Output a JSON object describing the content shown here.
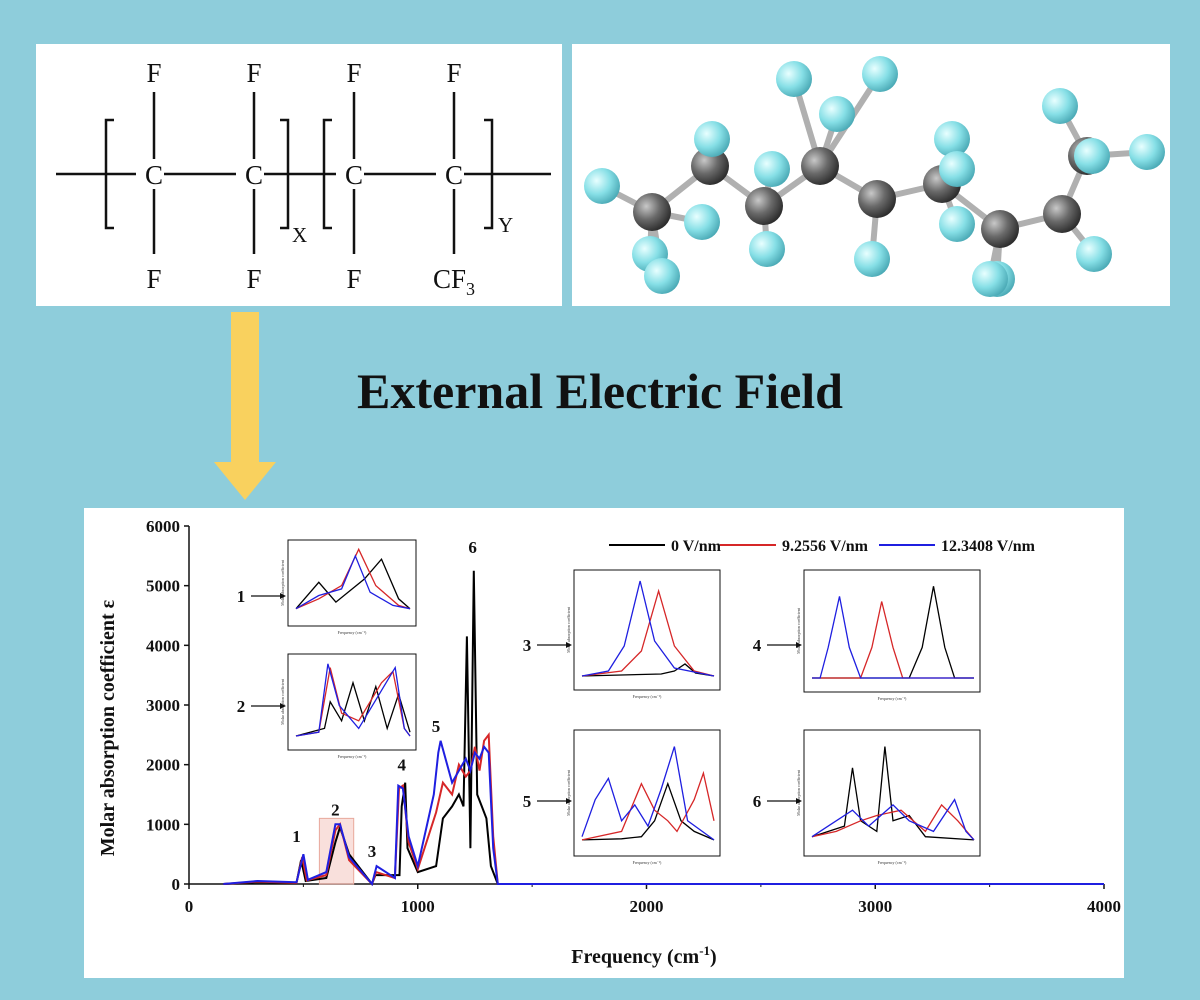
{
  "headline": "External Electric Field",
  "structure": {
    "top_atoms": [
      "F",
      "F",
      "F",
      "F"
    ],
    "backbone_atoms": [
      "C",
      "C",
      "C",
      "C"
    ],
    "bottom_atoms": [
      "F",
      "F",
      "F",
      "CF3"
    ],
    "subscript_x": "X",
    "subscript_y": "Y"
  },
  "colors": {
    "background": "#8ecddb",
    "arrow": "#f9d15e",
    "atom_carbon": "#5a5a5a",
    "atom_fluorine": "#7fd9e0",
    "series_0": "#000000",
    "series_1": "#d62728",
    "series_2": "#1f1fe0"
  },
  "chart_data": {
    "type": "line",
    "xlabel": "Frequency (cm",
    "xlabel_sup": "-1",
    "xlabel_end": ")",
    "ylabel": "Molar absorption coefficient ε",
    "xlim": [
      0,
      4000
    ],
    "ylim": [
      0,
      6000
    ],
    "xticks": [
      0,
      1000,
      2000,
      3000,
      4000
    ],
    "yticks": [
      0,
      1000,
      2000,
      3000,
      4000,
      5000,
      6000
    ],
    "legend_position": "top-right",
    "series": [
      {
        "name": "0 V/nm",
        "color": "#000000",
        "x": [
          150,
          300,
          470,
          490,
          510,
          600,
          640,
          660,
          700,
          800,
          815,
          920,
          930,
          945,
          955,
          1000,
          1080,
          1110,
          1150,
          1180,
          1200,
          1215,
          1230,
          1245,
          1260,
          1280,
          1300,
          1320,
          1350,
          1500
        ],
        "y": [
          0,
          30,
          20,
          400,
          50,
          100,
          700,
          950,
          500,
          0,
          150,
          150,
          1300,
          1700,
          600,
          200,
          300,
          1100,
          1300,
          1500,
          1300,
          4150,
          600,
          5250,
          1500,
          1300,
          1100,
          300,
          0,
          0
        ]
      },
      {
        "name": "9.2556 V/nm",
        "color": "#d62728",
        "x": [
          150,
          300,
          470,
          495,
          515,
          600,
          640,
          660,
          700,
          800,
          818,
          900,
          918,
          935,
          960,
          1000,
          1080,
          1110,
          1150,
          1180,
          1210,
          1230,
          1250,
          1270,
          1290,
          1310,
          1330,
          1350,
          1500
        ],
        "y": [
          0,
          40,
          20,
          450,
          60,
          150,
          900,
          1000,
          400,
          0,
          200,
          100,
          1600,
          1650,
          700,
          250,
          1200,
          1700,
          1500,
          2000,
          1800,
          1900,
          2300,
          1900,
          2400,
          2500,
          800,
          0,
          0
        ]
      },
      {
        "name": "12.3408 V/nm",
        "color": "#1f1fe0",
        "x": [
          150,
          300,
          470,
          500,
          520,
          600,
          640,
          660,
          700,
          800,
          820,
          900,
          915,
          935,
          960,
          1000,
          1070,
          1090,
          1100,
          1150,
          1180,
          1210,
          1230,
          1250,
          1270,
          1290,
          1310,
          1330,
          1350,
          1500
        ],
        "y": [
          0,
          50,
          30,
          500,
          70,
          200,
          1000,
          1000,
          450,
          0,
          300,
          100,
          1650,
          1600,
          800,
          300,
          1500,
          2200,
          2400,
          1700,
          1900,
          2100,
          1900,
          2200,
          2100,
          2300,
          2200,
          600,
          0,
          0
        ]
      }
    ],
    "peak_labels": [
      {
        "label": "1",
        "x": 470,
        "y": 700
      },
      {
        "label": "2",
        "x": 640,
        "y": 1150
      },
      {
        "label": "3",
        "x": 800,
        "y": 450
      },
      {
        "label": "4",
        "x": 930,
        "y": 1900
      },
      {
        "label": "5",
        "x": 1080,
        "y": 2550
      },
      {
        "label": "6",
        "x": 1240,
        "y": 5550
      }
    ],
    "insets": [
      {
        "label": "1",
        "xaxis_label": "Frequency (cm⁻¹)",
        "yaxis_label": "Molar absorption coefficient",
        "series": [
          [
            [
              0,
              0.05
            ],
            [
              0.2,
              0.45
            ],
            [
              0.35,
              0.15
            ],
            [
              0.6,
              0.5
            ],
            [
              0.75,
              0.8
            ],
            [
              0.9,
              0.2
            ],
            [
              1,
              0.05
            ]
          ],
          [
            [
              0,
              0.05
            ],
            [
              0.2,
              0.2
            ],
            [
              0.4,
              0.4
            ],
            [
              0.55,
              0.95
            ],
            [
              0.7,
              0.4
            ],
            [
              0.9,
              0.1
            ],
            [
              1,
              0.05
            ]
          ],
          [
            [
              0,
              0.05
            ],
            [
              0.2,
              0.25
            ],
            [
              0.4,
              0.35
            ],
            [
              0.52,
              0.85
            ],
            [
              0.65,
              0.3
            ],
            [
              0.85,
              0.1
            ],
            [
              1,
              0.05
            ]
          ]
        ]
      },
      {
        "label": "2",
        "xaxis_label": "Frequency (cm⁻¹)",
        "yaxis_label": "Molar absorption coefficient",
        "series": [
          [
            [
              0,
              0
            ],
            [
              0.25,
              0.1
            ],
            [
              0.3,
              0.45
            ],
            [
              0.4,
              0.2
            ],
            [
              0.5,
              0.7
            ],
            [
              0.6,
              0.2
            ],
            [
              0.7,
              0.65
            ],
            [
              0.8,
              0.1
            ],
            [
              0.9,
              0.55
            ],
            [
              1,
              0.05
            ]
          ],
          [
            [
              0,
              0
            ],
            [
              0.2,
              0.05
            ],
            [
              0.3,
              0.9
            ],
            [
              0.4,
              0.3
            ],
            [
              0.55,
              0.2
            ],
            [
              0.75,
              0.7
            ],
            [
              0.85,
              0.85
            ],
            [
              0.95,
              0.1
            ],
            [
              1,
              0
            ]
          ],
          [
            [
              0,
              0
            ],
            [
              0.2,
              0.05
            ],
            [
              0.28,
              0.95
            ],
            [
              0.38,
              0.4
            ],
            [
              0.55,
              0.1
            ],
            [
              0.75,
              0.6
            ],
            [
              0.87,
              0.9
            ],
            [
              0.95,
              0.1
            ],
            [
              1,
              0
            ]
          ]
        ]
      },
      {
        "label": "3",
        "xaxis_label": "Frequency (cm⁻¹)",
        "yaxis_label": "Molar absorption coefficient",
        "series": [
          [
            [
              0,
              0
            ],
            [
              0.6,
              0.02
            ],
            [
              0.7,
              0.05
            ],
            [
              0.78,
              0.12
            ],
            [
              0.86,
              0.03
            ],
            [
              1,
              0
            ]
          ],
          [
            [
              0,
              0
            ],
            [
              0.3,
              0.05
            ],
            [
              0.45,
              0.25
            ],
            [
              0.58,
              0.85
            ],
            [
              0.7,
              0.3
            ],
            [
              0.85,
              0.05
            ],
            [
              1,
              0
            ]
          ],
          [
            [
              0,
              0
            ],
            [
              0.2,
              0.05
            ],
            [
              0.32,
              0.3
            ],
            [
              0.44,
              0.95
            ],
            [
              0.55,
              0.35
            ],
            [
              0.7,
              0.08
            ],
            [
              1,
              0
            ]
          ]
        ]
      },
      {
        "label": "4",
        "xaxis_label": "Frequency (cm⁻¹)",
        "yaxis_label": "Molar absorption coefficient",
        "series": [
          [
            [
              0,
              0
            ],
            [
              0.6,
              0
            ],
            [
              0.68,
              0.3
            ],
            [
              0.75,
              0.9
            ],
            [
              0.82,
              0.3
            ],
            [
              0.88,
              0
            ],
            [
              1,
              0
            ]
          ],
          [
            [
              0,
              0
            ],
            [
              0.3,
              0
            ],
            [
              0.37,
              0.3
            ],
            [
              0.43,
              0.75
            ],
            [
              0.5,
              0.3
            ],
            [
              0.56,
              0
            ],
            [
              1,
              0
            ]
          ],
          [
            [
              0,
              0
            ],
            [
              0.05,
              0
            ],
            [
              0.1,
              0.3
            ],
            [
              0.17,
              0.8
            ],
            [
              0.23,
              0.3
            ],
            [
              0.3,
              0
            ],
            [
              1,
              0
            ]
          ]
        ]
      },
      {
        "label": "5",
        "xaxis_label": "Frequency (cm⁻¹)",
        "yaxis_label": "Molar absorption coefficient",
        "series": [
          [
            [
              0,
              0.02
            ],
            [
              0.3,
              0.03
            ],
            [
              0.45,
              0.05
            ],
            [
              0.55,
              0.2
            ],
            [
              0.65,
              0.55
            ],
            [
              0.75,
              0.2
            ],
            [
              0.85,
              0.1
            ],
            [
              1,
              0.02
            ]
          ],
          [
            [
              0,
              0.02
            ],
            [
              0.3,
              0.1
            ],
            [
              0.45,
              0.55
            ],
            [
              0.55,
              0.3
            ],
            [
              0.65,
              0.2
            ],
            [
              0.72,
              0.1
            ],
            [
              0.85,
              0.4
            ],
            [
              0.92,
              0.65
            ],
            [
              1,
              0.2
            ]
          ],
          [
            [
              0,
              0.05
            ],
            [
              0.1,
              0.4
            ],
            [
              0.2,
              0.6
            ],
            [
              0.3,
              0.2
            ],
            [
              0.4,
              0.35
            ],
            [
              0.5,
              0.15
            ],
            [
              0.6,
              0.5
            ],
            [
              0.7,
              0.9
            ],
            [
              0.8,
              0.2
            ],
            [
              1,
              0.02
            ]
          ]
        ]
      },
      {
        "label": "6",
        "xaxis_label": "Frequency (cm⁻¹)",
        "yaxis_label": "Molar absorption coefficient",
        "series": [
          [
            [
              0,
              0.05
            ],
            [
              0.2,
              0.15
            ],
            [
              0.25,
              0.7
            ],
            [
              0.3,
              0.2
            ],
            [
              0.4,
              0.1
            ],
            [
              0.45,
              0.9
            ],
            [
              0.5,
              0.2
            ],
            [
              0.6,
              0.25
            ],
            [
              0.7,
              0.05
            ],
            [
              1,
              0.02
            ]
          ],
          [
            [
              0,
              0.05
            ],
            [
              0.15,
              0.1
            ],
            [
              0.3,
              0.2
            ],
            [
              0.4,
              0.25
            ],
            [
              0.55,
              0.3
            ],
            [
              0.7,
              0.1
            ],
            [
              0.8,
              0.35
            ],
            [
              0.9,
              0.2
            ],
            [
              1,
              0.02
            ]
          ],
          [
            [
              0,
              0.05
            ],
            [
              0.1,
              0.15
            ],
            [
              0.25,
              0.3
            ],
            [
              0.35,
              0.15
            ],
            [
              0.5,
              0.35
            ],
            [
              0.6,
              0.2
            ],
            [
              0.75,
              0.1
            ],
            [
              0.88,
              0.4
            ],
            [
              0.95,
              0.1
            ],
            [
              1,
              0.02
            ]
          ]
        ]
      }
    ]
  }
}
